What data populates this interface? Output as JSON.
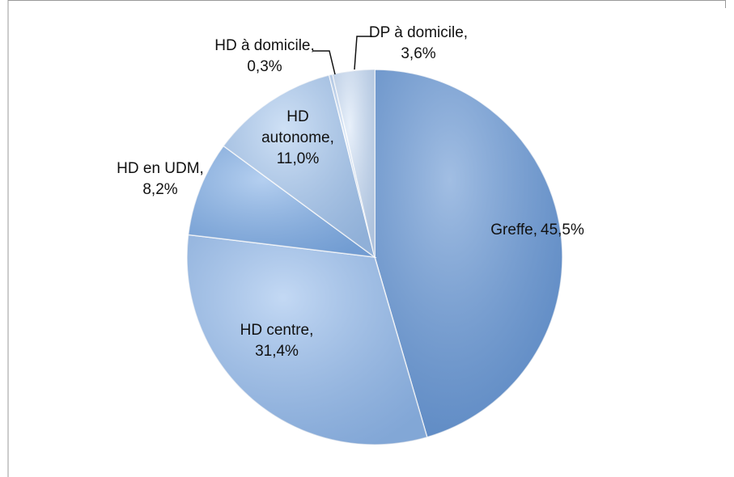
{
  "chart_data": {
    "type": "pie",
    "categories": [
      "Greffe,",
      "HD centre,",
      "HD en UDM,",
      "HD autonome,",
      "HD à domicile,",
      "DP à domicile,"
    ],
    "values": [
      45.5,
      31.4,
      8.2,
      11.0,
      0.3,
      3.6
    ],
    "value_labels": [
      "45,5%",
      "31,4%",
      "8,2%",
      "11,0%",
      "0,3%",
      "3,6%"
    ],
    "colors": [
      "#6f9bd4",
      "#a3c4ee",
      "#8db6e8",
      "#b5d0f0",
      "#c9dcf4",
      "#dde9f8"
    ]
  }
}
